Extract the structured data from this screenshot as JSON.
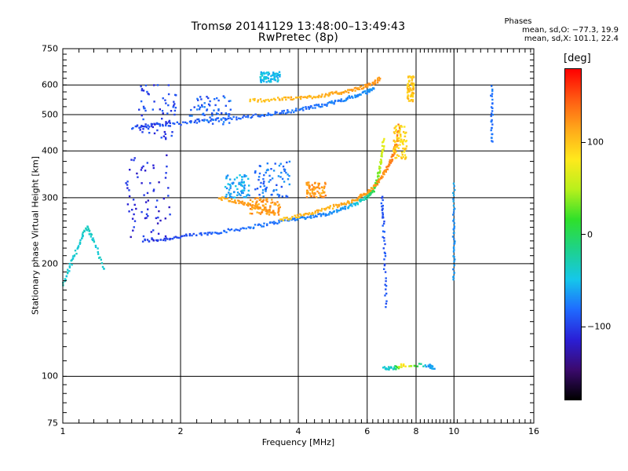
{
  "chart_data": {
    "type": "scatter",
    "title": "Tromsø 20141129 13:48:00–13:49:43",
    "subtitle": "RwPretec (8p)",
    "xlabel": "Frequency [MHz]",
    "ylabel": "Stationary phase Virtual Height [km]",
    "x_scale": "log",
    "y_scale": "log",
    "xlim": [
      1,
      16
    ],
    "ylim": [
      75,
      750
    ],
    "x_ticks": [
      1,
      2,
      4,
      6,
      8,
      10,
      16
    ],
    "x_gridlines": [
      2,
      4,
      6,
      8,
      10
    ],
    "y_ticks": [
      75,
      100,
      200,
      300,
      400,
      500,
      600,
      750
    ],
    "y_gridlines": [
      100,
      200,
      300,
      400,
      500,
      600
    ],
    "grid": true,
    "stats": {
      "title": "Phases",
      "o_line": "mean, sd,O: −77.3, 19.9",
      "x_line": "mean, sd,X: 101.1, 22.4"
    },
    "colorbar": {
      "unit": "deg",
      "range": [
        -180,
        180
      ],
      "tick_values": [
        -100,
        0,
        100
      ],
      "tick_labels": [
        "−100",
        "0",
        "100"
      ],
      "colors": [
        "#000000",
        "#3b0a6e",
        "#2a1fd6",
        "#1f6bff",
        "#15c7ea",
        "#1ed28a",
        "#2fe02a",
        "#b8f01c",
        "#ffe91c",
        "#ffa81a",
        "#ff5a12",
        "#ff0000"
      ]
    },
    "traces": [
      {
        "name": "",
        "type": "curve",
        "x": [
          1.6,
          1.8,
          2.0,
          2.3,
          2.6,
          3.0,
          3.4,
          3.8,
          4.2,
          4.6,
          5.0,
          5.4,
          5.7,
          6.0,
          6.2,
          6.35,
          6.45,
          6.55,
          6.62
        ],
        "y": [
          230,
          232,
          236,
          240,
          244,
          250,
          256,
          262,
          266,
          270,
          276,
          284,
          292,
          302,
          312,
          330,
          355,
          390,
          430
        ],
        "phase": [
          -100,
          -100,
          -95,
          -90,
          -85,
          -80,
          -80,
          -75,
          -75,
          -70,
          -70,
          -60,
          -40,
          -20,
          0,
          20,
          40,
          60,
          80
        ]
      },
      {
        "name": "",
        "type": "curve",
        "x": [
          3.6,
          4.0,
          4.4,
          4.8,
          5.2,
          5.6,
          5.9,
          6.2,
          6.45,
          6.65,
          6.85,
          7.0,
          7.15,
          7.25
        ],
        "y": [
          262,
          268,
          274,
          282,
          288,
          296,
          306,
          318,
          333,
          350,
          370,
          392,
          420,
          470
        ],
        "phase": [
          100,
          105,
          110,
          110,
          115,
          115,
          120,
          120,
          125,
          125,
          130,
          130,
          130,
          130
        ]
      },
      {
        "name": "",
        "type": "curve",
        "x": [
          1.5,
          1.7,
          2.0,
          2.4,
          2.8,
          3.2,
          3.6,
          4.0,
          4.4,
          4.8,
          5.2,
          5.6,
          6.0,
          6.25
        ],
        "y": [
          462,
          468,
          474,
          482,
          490,
          498,
          506,
          515,
          525,
          535,
          548,
          560,
          575,
          590
        ],
        "phase": [
          -95,
          -95,
          -90,
          -90,
          -85,
          -85,
          -80,
          -80,
          -80,
          -75,
          -75,
          -70,
          -70,
          -70
        ]
      },
      {
        "name": "",
        "type": "curve",
        "x": [
          3.0,
          3.4,
          3.8,
          4.2,
          4.6,
          5.0,
          5.4,
          5.8,
          6.2,
          6.5
        ],
        "y": [
          545,
          548,
          552,
          556,
          562,
          570,
          578,
          590,
          605,
          625
        ],
        "phase": [
          100,
          105,
          110,
          110,
          110,
          115,
          115,
          120,
          120,
          120
        ]
      },
      {
        "name": "",
        "type": "curve",
        "x": [
          2.5,
          2.7,
          2.9,
          3.1,
          3.3,
          3.5
        ],
        "y": [
          300,
          295,
          290,
          283,
          278,
          272
        ],
        "phase": [
          115,
          115,
          120,
          120,
          120,
          120
        ]
      },
      {
        "name": "",
        "type": "curve",
        "x": [
          1.0,
          1.05,
          1.1,
          1.15,
          1.2,
          1.28
        ],
        "y": [
          175,
          200,
          225,
          250,
          230,
          190
        ],
        "phase": [
          -40,
          -40,
          -40,
          -35,
          -40,
          -40
        ]
      },
      {
        "name": "",
        "type": "curve",
        "x": [
          6.55,
          6.6,
          6.65,
          6.7
        ],
        "y": [
          300,
          260,
          200,
          150
        ],
        "phase": [
          -95,
          -90,
          -90,
          -90
        ]
      },
      {
        "name": "",
        "type": "curve",
        "x": [
          10.0,
          10.0,
          10.0,
          10.0
        ],
        "y": [
          180,
          220,
          260,
          330
        ],
        "phase": [
          -70,
          -65,
          -70,
          -60
        ]
      },
      {
        "name": "",
        "type": "curve",
        "x": [
          12.5,
          12.5,
          12.5
        ],
        "y": [
          420,
          500,
          600
        ],
        "phase": [
          -80,
          -80,
          -80
        ]
      },
      {
        "name": "",
        "type": "curve",
        "x": [
          6.6,
          7.0,
          7.4,
          8.6,
          8.9
        ],
        "y": [
          105,
          105,
          107,
          107,
          105
        ],
        "phase": [
          -40,
          -40,
          100,
          -70,
          -60
        ]
      }
    ],
    "clusters": [
      {
        "x_range": [
          1.45,
          1.9
        ],
        "y_range": [
          230,
          390
        ],
        "phase": -110
      },
      {
        "x_range": [
          1.55,
          1.95
        ],
        "y_range": [
          430,
          600
        ],
        "phase": -100
      },
      {
        "x_range": [
          2.1,
          2.7
        ],
        "y_range": [
          470,
          560
        ],
        "phase": -85
      },
      {
        "x_range": [
          2.6,
          3.0
        ],
        "y_range": [
          300,
          345
        ],
        "phase": -60
      },
      {
        "x_range": [
          3.1,
          3.8
        ],
        "y_range": [
          300,
          380
        ],
        "phase": -80
      },
      {
        "x_range": [
          3.2,
          3.6
        ],
        "y_range": [
          610,
          650
        ],
        "phase": -50
      },
      {
        "x_range": [
          3.0,
          3.6
        ],
        "y_range": [
          270,
          300
        ],
        "phase": 120
      },
      {
        "x_range": [
          4.2,
          4.7
        ],
        "y_range": [
          300,
          330
        ],
        "phase": 120
      },
      {
        "x_range": [
          7.0,
          7.6
        ],
        "y_range": [
          380,
          470
        ],
        "phase": 90
      },
      {
        "x_range": [
          7.6,
          7.9
        ],
        "y_range": [
          540,
          640
        ],
        "phase": 100
      }
    ]
  }
}
